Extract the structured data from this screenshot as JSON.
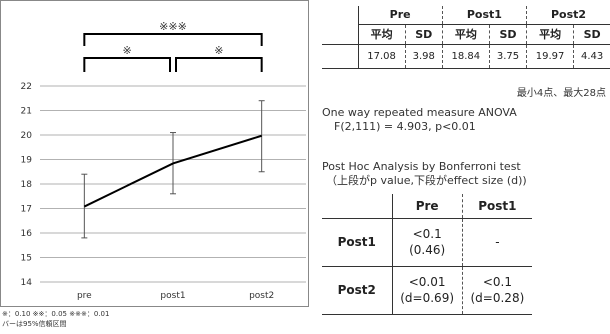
{
  "chart_data": {
    "type": "line",
    "categories": [
      "pre",
      "post1",
      "post2"
    ],
    "values": [
      17.08,
      18.84,
      19.97
    ],
    "ci_lower": [
      15.8,
      17.6,
      18.5
    ],
    "ci_upper": [
      18.4,
      20.1,
      21.4
    ],
    "ylim": [
      14,
      22
    ],
    "yticks": [
      "14",
      "15",
      "16",
      "17",
      "18",
      "19",
      "20",
      "21",
      "22"
    ],
    "grid": true,
    "significance": [
      {
        "from": "pre",
        "to": "post1",
        "label": "※"
      },
      {
        "from": "post1",
        "to": "post2",
        "label": "※"
      },
      {
        "from": "pre",
        "to": "post2",
        "label": "※※※"
      }
    ],
    "colors": {
      "line": "#000000",
      "grid": "#999999",
      "errorbar": "#555555"
    }
  },
  "footnote": {
    "line1": "※：0.10 ※※：0.05 ※※※：0.01",
    "line2": "バーは95%信頼区間"
  },
  "descriptive_table": {
    "groups": [
      "Pre",
      "Post1",
      "Post2"
    ],
    "subheaders": [
      "平均",
      "SD",
      "平均",
      "SD",
      "平均",
      "SD"
    ],
    "values": [
      "17.08",
      "3.98",
      "18.84",
      "3.75",
      "19.97",
      "4.43"
    ],
    "range_note": "最小4点、最大28点"
  },
  "anova": {
    "title": "One way repeated measure ANOVA",
    "result": "F(2,111) = 4.903, p<0.01"
  },
  "posthoc": {
    "title": "Post Hoc Analysis by Bonferroni test",
    "subtitle": "（上段がp value,下段がeffect size (d))",
    "columns": [
      "Pre",
      "Post1"
    ],
    "rows": [
      {
        "label": "Post1",
        "pre_p": "<0.1",
        "pre_d": "(0.46)",
        "post1": "-"
      },
      {
        "label": "Post2",
        "pre_p": "<0.01",
        "pre_d": "(d=0.69)",
        "post1_p": "<0.1",
        "post1_d": "(d=0.28)"
      }
    ]
  }
}
